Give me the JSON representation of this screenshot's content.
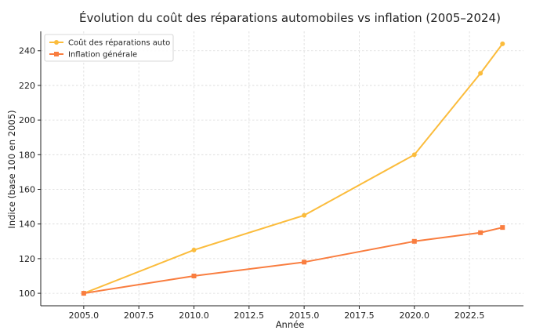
{
  "chart_data": {
    "type": "line",
    "title": "Évolution du coût des réparations automobiles vs inflation (2005–2024)",
    "xlabel": "Année",
    "ylabel": "Indice (base 100 en 2005)",
    "xlim": [
      2003.05,
      2024.95
    ],
    "ylim": [
      92.8,
      251.2
    ],
    "xticks": [
      2005.0,
      2007.5,
      2010.0,
      2012.5,
      2015.0,
      2017.5,
      2020.0,
      2022.5
    ],
    "xtick_labels": [
      "2005.0",
      "2007.5",
      "2010.0",
      "2012.5",
      "2015.0",
      "2017.5",
      "2020.0",
      "2022.5"
    ],
    "yticks": [
      100,
      120,
      140,
      160,
      180,
      200,
      220,
      240
    ],
    "ytick_labels": [
      "100",
      "120",
      "140",
      "160",
      "180",
      "200",
      "220",
      "240"
    ],
    "grid": true,
    "legend_position": "top-left",
    "series": [
      {
        "name": "Coût des réparations auto",
        "color": "#fbbc3c",
        "marker": "circle",
        "x": [
          2005,
          2010,
          2015,
          2020,
          2023,
          2024
        ],
        "y": [
          100,
          125,
          145,
          180,
          227,
          244
        ]
      },
      {
        "name": "Inflation générale",
        "color": "#f97d3f",
        "marker": "square",
        "x": [
          2005,
          2010,
          2015,
          2020,
          2023,
          2024
        ],
        "y": [
          100,
          110,
          118,
          130,
          135,
          138
        ]
      }
    ]
  }
}
